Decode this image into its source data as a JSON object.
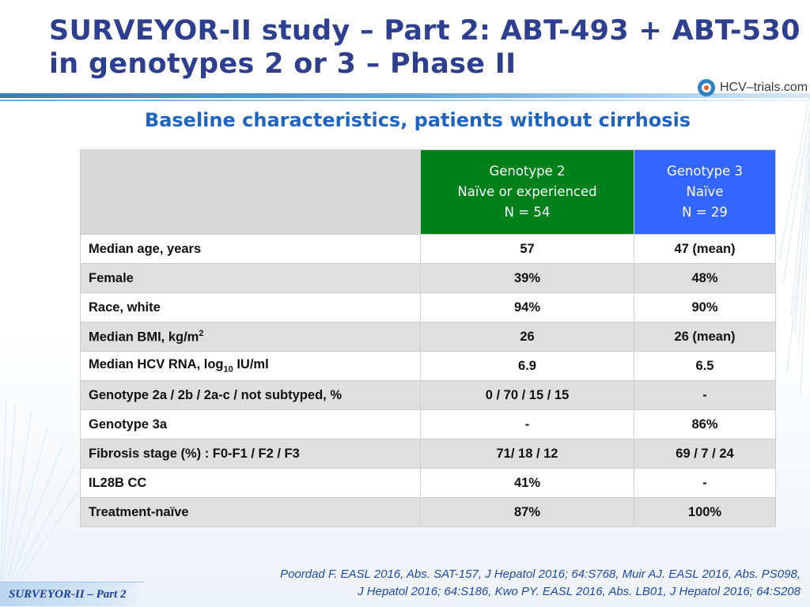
{
  "title": {
    "line1": "SURVEYOR-II study – Part 2: ABT-493 + ABT-530",
    "line2": "in genotypes 2 or 3 – Phase II"
  },
  "logo": {
    "text": "HCV–trials.com"
  },
  "subtitle": "Baseline characteristics, patients without cirrhosis",
  "colors": {
    "title": "#2e3f8f",
    "subtitle": "#1f64c1",
    "genotype2": "#00801a",
    "genotype3": "#3366ff"
  },
  "table": {
    "header": {
      "genotype2": [
        "Genotype 2",
        "Naïve or experienced",
        "N = 54"
      ],
      "genotype3": [
        "Genotype 3",
        "Naïve",
        "N = 29"
      ]
    },
    "rows": [
      {
        "label": "Median age, years",
        "g2": "57",
        "g3": "47 (mean)"
      },
      {
        "label": "Female",
        "g2": "39%",
        "g3": "48%"
      },
      {
        "label": "Race, white",
        "g2": "94%",
        "g3": "90%"
      },
      {
        "label_pre": "Median BMI, kg/m",
        "label_sup": "2",
        "label_post": "",
        "g2": "26",
        "g3": "26 (mean)"
      },
      {
        "label_pre": "Median HCV RNA, log",
        "label_sub": "10",
        "label_post": " IU/ml",
        "g2": "6.9",
        "g3": "6.5"
      },
      {
        "label": "Genotype 2a / 2b / 2a-c / not subtyped, %",
        "g2": "0 / 70 / 15 / 15",
        "g3": "-"
      },
      {
        "label": "Genotype 3a",
        "g2": "-",
        "g3": "86%"
      },
      {
        "label": "Fibrosis stage (%) : F0-F1 / F2 / F3",
        "g2": "71/ 18 / 12",
        "g3": "69 / 7 / 24"
      },
      {
        "label": "IL28B CC",
        "g2": "41%",
        "g3": "-"
      },
      {
        "label": "Treatment-naïve",
        "g2": "87%",
        "g3": "100%"
      }
    ]
  },
  "footnote": {
    "line1": "Poordad F. EASL 2016, Abs. SAT-157, J Hepatol 2016; 64:S768, Muir AJ. EASL 2016, Abs. PS098,",
    "line2": "J Hepatol 2016; 64:S186, Kwo PY. EASL 2016, Abs. LB01, J Hepatol 2016; 64:S208"
  },
  "badge": "SURVEYOR-II – Part 2"
}
